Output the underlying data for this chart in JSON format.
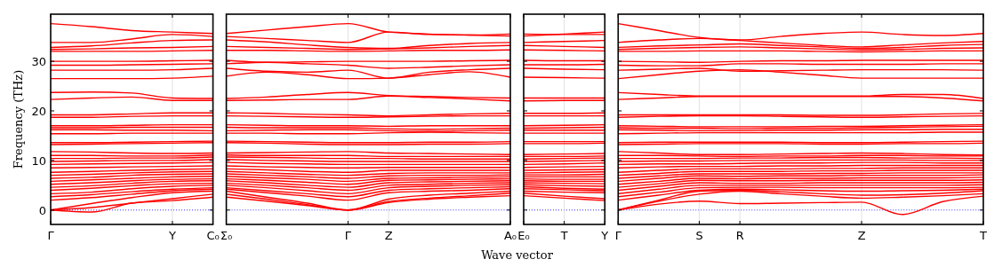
{
  "chart_data": [
    {
      "type": "line",
      "ylabel": "Frequency (THz)",
      "categories": [
        "Γ",
        null,
        null,
        "Y",
        "C₀"
      ],
      "ylim": [
        -2.9,
        39.5
      ],
      "yticks": [
        0,
        10,
        20,
        30
      ],
      "marker": "none",
      "line_style": "solid",
      "ref_lines": [
        {
          "axis": "y",
          "value": 0,
          "color": "#0000ff",
          "line_style": "dotted"
        },
        {
          "axis": "x",
          "value": "Y",
          "color": "#cccccc"
        }
      ],
      "series": [
        {
          "color": "#ff0000",
          "values": [
            0,
            -0.4,
            1.4,
            1.9,
            2.6
          ]
        },
        {
          "color": "#ff0000",
          "values": [
            0,
            0.5,
            1.4,
            2.3,
            3.2
          ]
        },
        {
          "color": "#ff0000",
          "values": [
            0,
            1.3,
            2.5,
            3.5,
            3.8
          ]
        },
        {
          "color": "#ff0000",
          "values": [
            2.0,
            2.5,
            3.2,
            3.9,
            4.2
          ]
        },
        {
          "color": "#ff0000",
          "values": [
            2.7,
            3.1,
            3.7,
            4.2,
            4.5
          ]
        },
        {
          "color": "#ff0000",
          "values": [
            3.3,
            3.6,
            4.3,
            4.8,
            5.0
          ]
        },
        {
          "color": "#ff0000",
          "values": [
            4.0,
            4.4,
            4.9,
            5.3,
            5.4
          ]
        },
        {
          "color": "#ff0000",
          "values": [
            4.6,
            4.9,
            5.4,
            5.8,
            5.9
          ]
        },
        {
          "color": "#ff0000",
          "values": [
            5.2,
            5.5,
            5.9,
            6.2,
            6.3
          ]
        },
        {
          "color": "#ff0000",
          "values": [
            5.8,
            6.1,
            6.4,
            6.7,
            6.8
          ]
        },
        {
          "color": "#ff0000",
          "values": [
            6.4,
            6.6,
            7.0,
            7.2,
            7.3
          ]
        },
        {
          "color": "#ff0000",
          "values": [
            7.0,
            7.2,
            7.5,
            7.7,
            7.8
          ]
        },
        {
          "color": "#ff0000",
          "values": [
            7.6,
            7.8,
            8.0,
            8.2,
            8.3
          ]
        },
        {
          "color": "#ff0000",
          "values": [
            8.5,
            8.6,
            8.7,
            8.8,
            8.9
          ]
        },
        {
          "color": "#ff0000",
          "values": [
            9.2,
            9.3,
            9.4,
            9.5,
            9.6
          ]
        },
        {
          "color": "#ff0000",
          "values": [
            9.8,
            9.9,
            10.0,
            10.0,
            10.2
          ]
        },
        {
          "color": "#ff0000",
          "values": [
            10.4,
            10.4,
            10.5,
            10.5,
            10.7
          ]
        },
        {
          "color": "#ff0000",
          "values": [
            11.0,
            11.0,
            10.9,
            10.9,
            11.1
          ]
        },
        {
          "color": "#ff0000",
          "values": [
            11.8,
            11.7,
            11.5,
            11.4,
            11.5
          ]
        },
        {
          "color": "#ff0000",
          "values": [
            13.2,
            13.3,
            13.4,
            13.5,
            13.6
          ]
        },
        {
          "color": "#ff0000",
          "values": [
            13.6,
            13.6,
            13.7,
            13.8,
            13.9
          ]
        },
        {
          "color": "#ff0000",
          "values": [
            15.4,
            15.4,
            15.5,
            15.5,
            15.5
          ]
        },
        {
          "color": "#ff0000",
          "values": [
            16.2,
            16.2,
            16.1,
            16.1,
            16.0
          ]
        },
        {
          "color": "#ff0000",
          "values": [
            16.6,
            16.6,
            16.7,
            16.7,
            16.7
          ]
        },
        {
          "color": "#ff0000",
          "values": [
            17.0,
            17.0,
            17.1,
            17.2,
            17.2
          ]
        },
        {
          "color": "#ff0000",
          "values": [
            18.7,
            18.7,
            18.9,
            19.0,
            19.0
          ]
        },
        {
          "color": "#ff0000",
          "values": [
            19.2,
            19.2,
            19.4,
            19.6,
            19.6
          ]
        },
        {
          "color": "#ff0000",
          "values": [
            22.3,
            22.6,
            22.8,
            22.1,
            22.1
          ]
        },
        {
          "color": "#ff0000",
          "values": [
            23.7,
            23.8,
            23.6,
            22.6,
            22.5
          ]
        },
        {
          "color": "#ff0000",
          "values": [
            26.5,
            26.5,
            26.5,
            26.6,
            27.0
          ]
        },
        {
          "color": "#ff0000",
          "values": [
            28.2,
            28.2,
            28.2,
            28.3,
            28.6
          ]
        },
        {
          "color": "#ff0000",
          "values": [
            29.2,
            29.2,
            29.3,
            29.4,
            29.5
          ]
        },
        {
          "color": "#ff0000",
          "values": [
            30.0,
            30.0,
            30.0,
            30.1,
            30.2
          ]
        },
        {
          "color": "#ff0000",
          "values": [
            32.0,
            32.0,
            32.0,
            32.1,
            32.2
          ]
        },
        {
          "color": "#ff0000",
          "values": [
            32.4,
            32.5,
            32.7,
            32.8,
            33.0
          ]
        },
        {
          "color": "#ff0000",
          "values": [
            32.8,
            33.1,
            33.7,
            34.2,
            34.3
          ]
        },
        {
          "color": "#ff0000",
          "values": [
            33.8,
            33.8,
            34.5,
            35.4,
            35.0
          ]
        },
        {
          "color": "#ff0000",
          "values": [
            37.6,
            37.0,
            36.2,
            35.9,
            35.6
          ]
        }
      ]
    },
    {
      "type": "line",
      "xlabel": "Wave vector",
      "tick_labels": "x",
      "categories": [
        "Σ₀",
        null,
        null,
        "Γ",
        "Z",
        null,
        null,
        "A₀"
      ],
      "ylim": [
        -2.9,
        39.5
      ],
      "yticks": [
        0,
        10,
        20,
        30
      ],
      "marker": "none",
      "line_style": "solid",
      "ref_lines": [
        {
          "axis": "y",
          "value": 0,
          "color": "#0000ff",
          "line_style": "dotted"
        },
        {
          "axis": "x",
          "value": "Γ",
          "color": "#cccccc"
        },
        {
          "axis": "x",
          "value": "Z",
          "color": "#cccccc"
        }
      ],
      "series": [
        {
          "color": "#ff0000",
          "values": [
            2.6,
            1.8,
            0.9,
            0,
            1.5,
            2.2,
            2.6,
            2.9
          ]
        },
        {
          "color": "#ff0000",
          "values": [
            3.2,
            2.2,
            1.1,
            0,
            1.7,
            2.4,
            2.9,
            3.4
          ]
        },
        {
          "color": "#ff0000",
          "values": [
            3.8,
            2.6,
            1.4,
            0,
            2.2,
            3.0,
            3.4,
            3.8
          ]
        },
        {
          "color": "#ff0000",
          "values": [
            4.2,
            3.5,
            2.8,
            2.0,
            3.5,
            3.8,
            4.0,
            4.3
          ]
        },
        {
          "color": "#ff0000",
          "values": [
            4.5,
            3.9,
            3.3,
            2.7,
            4.0,
            4.3,
            4.5,
            4.7
          ]
        },
        {
          "color": "#ff0000",
          "values": [
            5.0,
            4.5,
            3.9,
            3.3,
            4.5,
            4.8,
            5.0,
            5.1
          ]
        },
        {
          "color": "#ff0000",
          "values": [
            5.4,
            5.0,
            4.5,
            4.0,
            5.0,
            5.2,
            5.4,
            5.5
          ]
        },
        {
          "color": "#ff0000",
          "values": [
            5.9,
            5.5,
            5.0,
            4.6,
            5.5,
            5.7,
            5.8,
            5.9
          ]
        },
        {
          "color": "#ff0000",
          "values": [
            6.3,
            6.0,
            5.6,
            5.2,
            6.0,
            6.1,
            6.2,
            6.3
          ]
        },
        {
          "color": "#ff0000",
          "values": [
            6.8,
            6.5,
            6.2,
            5.8,
            6.4,
            6.5,
            6.6,
            6.7
          ]
        },
        {
          "color": "#ff0000",
          "values": [
            7.3,
            7.0,
            6.7,
            6.4,
            6.9,
            7.0,
            7.0,
            7.1
          ]
        },
        {
          "color": "#ff0000",
          "values": [
            7.8,
            7.5,
            7.2,
            7.0,
            7.4,
            7.5,
            7.5,
            7.5
          ]
        },
        {
          "color": "#ff0000",
          "values": [
            8.3,
            8.1,
            7.8,
            7.6,
            8.0,
            8.0,
            8.0,
            8.0
          ]
        },
        {
          "color": "#ff0000",
          "values": [
            8.9,
            8.7,
            8.6,
            8.5,
            8.6,
            8.6,
            8.6,
            8.6
          ]
        },
        {
          "color": "#ff0000",
          "values": [
            9.6,
            9.4,
            9.3,
            9.2,
            9.2,
            9.2,
            9.2,
            9.2
          ]
        },
        {
          "color": "#ff0000",
          "values": [
            10.2,
            10.0,
            9.9,
            9.8,
            9.8,
            9.8,
            9.8,
            9.8
          ]
        },
        {
          "color": "#ff0000",
          "values": [
            10.7,
            10.6,
            10.5,
            10.4,
            10.4,
            10.3,
            10.3,
            10.3
          ]
        },
        {
          "color": "#ff0000",
          "values": [
            11.1,
            11.0,
            11.0,
            11.0,
            10.8,
            10.8,
            10.8,
            10.8
          ]
        },
        {
          "color": "#ff0000",
          "values": [
            11.5,
            11.6,
            11.7,
            11.8,
            11.5,
            11.4,
            11.3,
            11.2
          ]
        },
        {
          "color": "#ff0000",
          "values": [
            13.6,
            13.5,
            13.3,
            13.2,
            13.2,
            13.3,
            13.3,
            13.4
          ]
        },
        {
          "color": "#ff0000",
          "values": [
            13.9,
            13.8,
            13.7,
            13.6,
            13.6,
            13.7,
            13.7,
            13.8
          ]
        },
        {
          "color": "#ff0000",
          "values": [
            15.5,
            15.5,
            15.4,
            15.4,
            15.6,
            15.7,
            15.6,
            15.5
          ]
        },
        {
          "color": "#ff0000",
          "values": [
            16.0,
            16.1,
            16.2,
            16.2,
            16.0,
            15.9,
            16.0,
            16.1
          ]
        },
        {
          "color": "#ff0000",
          "values": [
            16.7,
            16.6,
            16.6,
            16.6,
            16.4,
            16.3,
            16.4,
            16.5
          ]
        },
        {
          "color": "#ff0000",
          "values": [
            17.2,
            17.1,
            17.0,
            17.0,
            16.9,
            17.0,
            17.0,
            17.0
          ]
        },
        {
          "color": "#ff0000",
          "values": [
            19.0,
            18.9,
            18.8,
            18.7,
            18.8,
            18.9,
            19.0,
            19.0
          ]
        },
        {
          "color": "#ff0000",
          "values": [
            19.6,
            19.5,
            19.3,
            19.2,
            19.0,
            19.2,
            19.4,
            19.5
          ]
        },
        {
          "color": "#ff0000",
          "values": [
            22.1,
            22.2,
            22.3,
            22.3,
            23.0,
            22.7,
            22.4,
            22.0
          ]
        },
        {
          "color": "#ff0000",
          "values": [
            22.5,
            22.8,
            23.3,
            23.7,
            23.1,
            22.9,
            22.7,
            22.6
          ]
        },
        {
          "color": "#ff0000",
          "values": [
            27.0,
            27.8,
            27.3,
            26.5,
            26.6,
            27.3,
            27.9,
            26.8
          ]
        },
        {
          "color": "#ff0000",
          "values": [
            28.6,
            28.0,
            27.8,
            28.2,
            26.6,
            27.8,
            28.3,
            28.6
          ]
        },
        {
          "color": "#ff0000",
          "values": [
            29.5,
            29.8,
            29.5,
            29.2,
            28.6,
            28.8,
            29.1,
            29.3
          ]
        },
        {
          "color": "#ff0000",
          "values": [
            30.2,
            29.8,
            29.9,
            30.0,
            30.0,
            30.0,
            30.1,
            30.2
          ]
        },
        {
          "color": "#ff0000",
          "values": [
            32.2,
            32.2,
            32.1,
            32.0,
            32.1,
            32.2,
            32.2,
            32.3
          ]
        },
        {
          "color": "#ff0000",
          "values": [
            33.0,
            32.8,
            32.6,
            32.4,
            32.5,
            32.7,
            33.0,
            33.2
          ]
        },
        {
          "color": "#ff0000",
          "values": [
            34.3,
            33.9,
            33.3,
            32.8,
            32.6,
            33.2,
            33.6,
            33.8
          ]
        },
        {
          "color": "#ff0000",
          "values": [
            35.0,
            34.6,
            34.2,
            33.8,
            35.9,
            35.4,
            35.3,
            35.5
          ]
        },
        {
          "color": "#ff0000",
          "values": [
            35.6,
            36.3,
            37.0,
            37.6,
            35.9,
            35.5,
            35.3,
            35.1
          ]
        }
      ]
    },
    {
      "type": "line",
      "tick_labels": "x",
      "categories": [
        "E₀",
        "T",
        "Y"
      ],
      "ylim": [
        -2.9,
        39.5
      ],
      "yticks": [
        0,
        10,
        20,
        30
      ],
      "marker": "none",
      "line_style": "solid",
      "ref_lines": [
        {
          "axis": "y",
          "value": 0,
          "color": "#0000ff",
          "line_style": "dotted"
        },
        {
          "axis": "x",
          "value": "T",
          "color": "#cccccc"
        }
      ],
      "series": [
        {
          "color": "#ff0000",
          "values": [
            2.9,
            2.4,
            1.9
          ]
        },
        {
          "color": "#ff0000",
          "values": [
            3.4,
            2.8,
            2.3
          ]
        },
        {
          "color": "#ff0000",
          "values": [
            3.8,
            3.6,
            3.5
          ]
        },
        {
          "color": "#ff0000",
          "values": [
            4.3,
            4.1,
            3.9
          ]
        },
        {
          "color": "#ff0000",
          "values": [
            4.7,
            4.4,
            4.2
          ]
        },
        {
          "color": "#ff0000",
          "values": [
            5.1,
            4.9,
            4.8
          ]
        },
        {
          "color": "#ff0000",
          "values": [
            5.5,
            5.4,
            5.3
          ]
        },
        {
          "color": "#ff0000",
          "values": [
            5.9,
            5.8,
            5.8
          ]
        },
        {
          "color": "#ff0000",
          "values": [
            6.3,
            6.2,
            6.2
          ]
        },
        {
          "color": "#ff0000",
          "values": [
            6.7,
            6.7,
            6.7
          ]
        },
        {
          "color": "#ff0000",
          "values": [
            7.1,
            7.1,
            7.2
          ]
        },
        {
          "color": "#ff0000",
          "values": [
            7.5,
            7.6,
            7.7
          ]
        },
        {
          "color": "#ff0000",
          "values": [
            8.0,
            8.1,
            8.2
          ]
        },
        {
          "color": "#ff0000",
          "values": [
            8.6,
            8.7,
            8.8
          ]
        },
        {
          "color": "#ff0000",
          "values": [
            9.2,
            9.3,
            9.5
          ]
        },
        {
          "color": "#ff0000",
          "values": [
            9.8,
            9.9,
            10.0
          ]
        },
        {
          "color": "#ff0000",
          "values": [
            10.3,
            10.4,
            10.5
          ]
        },
        {
          "color": "#ff0000",
          "values": [
            10.8,
            10.8,
            10.9
          ]
        },
        {
          "color": "#ff0000",
          "values": [
            11.2,
            11.3,
            11.4
          ]
        },
        {
          "color": "#ff0000",
          "values": [
            13.4,
            13.4,
            13.5
          ]
        },
        {
          "color": "#ff0000",
          "values": [
            13.8,
            13.8,
            13.8
          ]
        },
        {
          "color": "#ff0000",
          "values": [
            15.5,
            15.5,
            15.5
          ]
        },
        {
          "color": "#ff0000",
          "values": [
            16.1,
            16.1,
            16.1
          ]
        },
        {
          "color": "#ff0000",
          "values": [
            16.5,
            16.6,
            16.7
          ]
        },
        {
          "color": "#ff0000",
          "values": [
            17.0,
            17.1,
            17.2
          ]
        },
        {
          "color": "#ff0000",
          "values": [
            19.0,
            19.0,
            19.0
          ]
        },
        {
          "color": "#ff0000",
          "values": [
            19.5,
            19.5,
            19.6
          ]
        },
        {
          "color": "#ff0000",
          "values": [
            22.0,
            22.1,
            22.1
          ]
        },
        {
          "color": "#ff0000",
          "values": [
            22.6,
            22.6,
            22.6
          ]
        },
        {
          "color": "#ff0000",
          "values": [
            26.8,
            26.7,
            26.6
          ]
        },
        {
          "color": "#ff0000",
          "values": [
            28.6,
            28.4,
            28.3
          ]
        },
        {
          "color": "#ff0000",
          "values": [
            29.3,
            29.3,
            29.4
          ]
        },
        {
          "color": "#ff0000",
          "values": [
            30.2,
            30.1,
            30.1
          ]
        },
        {
          "color": "#ff0000",
          "values": [
            32.3,
            32.2,
            32.1
          ]
        },
        {
          "color": "#ff0000",
          "values": [
            33.2,
            33.0,
            32.8
          ]
        },
        {
          "color": "#ff0000",
          "values": [
            33.8,
            34.0,
            34.2
          ]
        },
        {
          "color": "#ff0000",
          "values": [
            35.5,
            35.4,
            35.4
          ]
        },
        {
          "color": "#ff0000",
          "values": [
            35.1,
            35.5,
            35.9
          ]
        }
      ]
    },
    {
      "type": "line",
      "tick_labels": "x",
      "categories": [
        "Γ",
        null,
        "S",
        "R",
        null,
        null,
        "Z",
        null,
        null,
        "T"
      ],
      "ylim": [
        -2.9,
        39.5
      ],
      "yticks": [
        0,
        10,
        20,
        30
      ],
      "marker": "none",
      "line_style": "solid",
      "ref_lines": [
        {
          "axis": "y",
          "value": 0,
          "color": "#0000ff",
          "line_style": "dotted"
        },
        {
          "axis": "x",
          "value": "S",
          "color": "#cccccc"
        },
        {
          "axis": "x",
          "value": "R",
          "color": "#cccccc"
        },
        {
          "axis": "x",
          "value": "Z",
          "color": "#cccccc"
        }
      ],
      "series": [
        {
          "color": "#ff0000",
          "values": [
            0,
            1.2,
            1.8,
            1.3,
            1.4,
            1.5,
            1.6,
            -0.9,
            1.7,
            2.8
          ]
        },
        {
          "color": "#ff0000",
          "values": [
            0,
            1.8,
            3.2,
            3.8,
            3.3,
            2.8,
            2.4,
            2.6,
            2.9,
            3.3
          ]
        },
        {
          "color": "#ff0000",
          "values": [
            0,
            2.0,
            3.8,
            4.0,
            3.7,
            3.3,
            3.0,
            3.1,
            3.4,
            3.9
          ]
        },
        {
          "color": "#ff0000",
          "values": [
            2.0,
            3.0,
            4.0,
            4.2,
            4.1,
            3.9,
            3.8,
            3.9,
            4.0,
            4.2
          ]
        },
        {
          "color": "#ff0000",
          "values": [
            2.7,
            3.6,
            4.5,
            4.6,
            4.6,
            4.5,
            4.5,
            4.5,
            4.5,
            4.6
          ]
        },
        {
          "color": "#ff0000",
          "values": [
            3.3,
            4.2,
            5.0,
            5.0,
            5.0,
            5.0,
            5.0,
            5.0,
            5.0,
            5.1
          ]
        },
        {
          "color": "#ff0000",
          "values": [
            4.0,
            4.8,
            5.5,
            5.4,
            5.4,
            5.5,
            5.5,
            5.5,
            5.5,
            5.6
          ]
        },
        {
          "color": "#ff0000",
          "values": [
            4.6,
            5.3,
            6.0,
            5.9,
            5.9,
            6.0,
            6.0,
            6.0,
            6.0,
            6.1
          ]
        },
        {
          "color": "#ff0000",
          "values": [
            5.2,
            5.8,
            6.4,
            6.3,
            6.4,
            6.4,
            6.5,
            6.5,
            6.5,
            6.6
          ]
        },
        {
          "color": "#ff0000",
          "values": [
            5.8,
            6.4,
            6.9,
            6.8,
            6.9,
            6.9,
            7.0,
            7.0,
            7.0,
            7.1
          ]
        },
        {
          "color": "#ff0000",
          "values": [
            6.4,
            6.9,
            7.3,
            7.3,
            7.3,
            7.4,
            7.4,
            7.5,
            7.5,
            7.5
          ]
        },
        {
          "color": "#ff0000",
          "values": [
            7.0,
            7.4,
            7.8,
            7.8,
            7.8,
            7.9,
            7.9,
            8.0,
            8.0,
            8.0
          ]
        },
        {
          "color": "#ff0000",
          "values": [
            7.6,
            8.0,
            8.3,
            8.3,
            8.3,
            8.4,
            8.4,
            8.5,
            8.5,
            8.5
          ]
        },
        {
          "color": "#ff0000",
          "values": [
            8.5,
            8.7,
            8.8,
            8.8,
            8.9,
            8.9,
            9.0,
            9.0,
            9.0,
            9.0
          ]
        },
        {
          "color": "#ff0000",
          "values": [
            9.2,
            9.3,
            9.3,
            9.4,
            9.5,
            9.5,
            9.6,
            9.6,
            9.5,
            9.5
          ]
        },
        {
          "color": "#ff0000",
          "values": [
            9.8,
            9.9,
            9.9,
            10.0,
            10.0,
            10.1,
            10.1,
            10.1,
            10.0,
            10.0
          ]
        },
        {
          "color": "#ff0000",
          "values": [
            10.4,
            10.4,
            10.4,
            10.5,
            10.5,
            10.6,
            10.6,
            10.5,
            10.5,
            10.4
          ]
        },
        {
          "color": "#ff0000",
          "values": [
            11.0,
            11.0,
            10.9,
            10.8,
            10.9,
            10.9,
            11.0,
            11.0,
            10.9,
            10.9
          ]
        },
        {
          "color": "#ff0000",
          "values": [
            11.8,
            11.5,
            11.2,
            11.2,
            11.3,
            11.4,
            11.5,
            11.4,
            11.2,
            11.1
          ]
        },
        {
          "color": "#ff0000",
          "values": [
            13.2,
            13.3,
            13.4,
            13.4,
            13.4,
            13.3,
            13.3,
            13.4,
            13.4,
            13.5
          ]
        },
        {
          "color": "#ff0000",
          "values": [
            13.6,
            13.7,
            13.7,
            13.7,
            13.7,
            13.6,
            13.6,
            13.7,
            13.8,
            13.9
          ]
        },
        {
          "color": "#ff0000",
          "values": [
            15.4,
            15.5,
            15.6,
            15.6,
            15.6,
            15.6,
            15.6,
            15.6,
            15.7,
            15.7
          ]
        },
        {
          "color": "#ff0000",
          "values": [
            16.2,
            16.1,
            16.0,
            16.0,
            16.1,
            16.1,
            16.2,
            16.2,
            16.3,
            16.3
          ]
        },
        {
          "color": "#ff0000",
          "values": [
            16.6,
            16.5,
            16.5,
            16.4,
            16.5,
            16.5,
            16.6,
            16.7,
            16.8,
            16.9
          ]
        },
        {
          "color": "#ff0000",
          "values": [
            17.0,
            16.9,
            16.8,
            16.8,
            16.8,
            16.9,
            16.9,
            17.0,
            17.1,
            17.2
          ]
        },
        {
          "color": "#ff0000",
          "values": [
            18.7,
            18.9,
            19.0,
            19.0,
            18.9,
            18.8,
            18.7,
            18.8,
            18.9,
            19.0
          ]
        },
        {
          "color": "#ff0000",
          "values": [
            19.2,
            19.2,
            19.2,
            19.2,
            19.2,
            19.1,
            19.1,
            19.2,
            19.4,
            19.5
          ]
        },
        {
          "color": "#ff0000",
          "values": [
            22.3,
            22.6,
            22.9,
            22.9,
            22.9,
            22.9,
            22.9,
            22.9,
            22.6,
            22.0
          ]
        },
        {
          "color": "#ff0000",
          "values": [
            23.7,
            23.3,
            23.0,
            23.0,
            23.0,
            23.0,
            23.0,
            23.3,
            23.3,
            22.5
          ]
        },
        {
          "color": "#ff0000",
          "values": [
            26.5,
            27.3,
            28.0,
            28.3,
            27.8,
            27.2,
            26.6,
            26.6,
            26.6,
            26.6
          ]
        },
        {
          "color": "#ff0000",
          "values": [
            28.2,
            28.4,
            28.6,
            28.0,
            28.1,
            28.2,
            28.3,
            28.3,
            28.3,
            28.2
          ]
        },
        {
          "color": "#ff0000",
          "values": [
            29.2,
            29.1,
            29.1,
            29.5,
            29.5,
            29.4,
            29.4,
            29.4,
            29.5,
            29.5
          ]
        },
        {
          "color": "#ff0000",
          "values": [
            30.0,
            29.9,
            29.8,
            30.0,
            30.1,
            30.1,
            30.2,
            30.2,
            30.2,
            30.2
          ]
        },
        {
          "color": "#ff0000",
          "values": [
            32.0,
            32.0,
            32.1,
            32.1,
            32.1,
            32.0,
            31.9,
            32.0,
            32.1,
            32.1
          ]
        },
        {
          "color": "#ff0000",
          "values": [
            32.4,
            32.6,
            32.8,
            32.9,
            32.7,
            32.5,
            32.3,
            32.4,
            32.6,
            32.7
          ]
        },
        {
          "color": "#ff0000",
          "values": [
            32.8,
            33.1,
            33.3,
            33.5,
            33.2,
            32.9,
            32.6,
            32.8,
            33.2,
            33.4
          ]
        },
        {
          "color": "#ff0000",
          "values": [
            33.8,
            34.3,
            34.6,
            34.2,
            33.7,
            33.2,
            32.9,
            33.3,
            33.7,
            34.0
          ]
        },
        {
          "color": "#ff0000",
          "values": [
            37.6,
            36.2,
            34.8,
            34.3,
            35.0,
            35.6,
            35.9,
            35.4,
            35.2,
            35.6
          ]
        }
      ]
    }
  ]
}
